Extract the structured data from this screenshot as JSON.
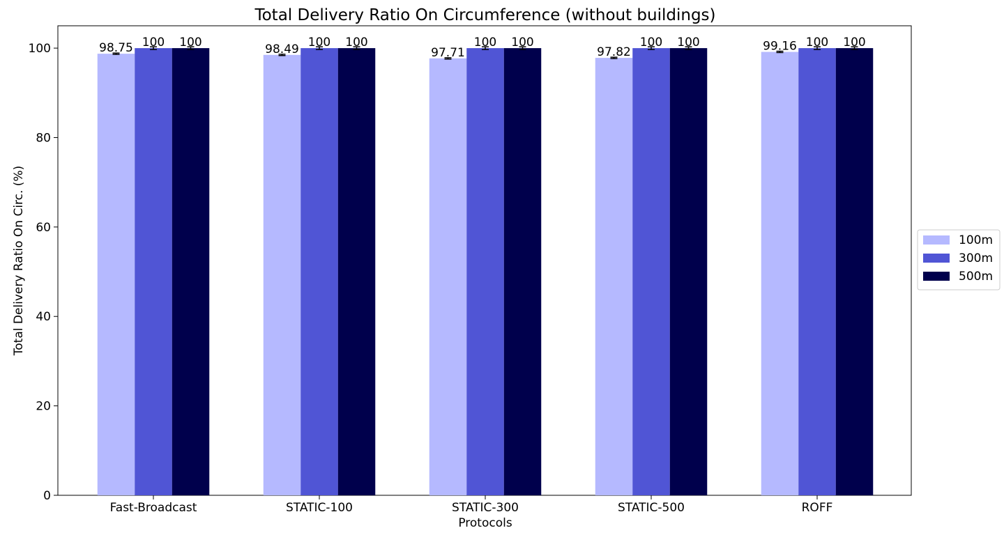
{
  "chart_data": {
    "type": "bar",
    "title": "Total Delivery Ratio On Circumference (without buildings)",
    "xlabel": "Protocols",
    "ylabel": "Total Delivery Ratio On Circ. (%)",
    "ylim": [
      0,
      105
    ],
    "yticks": [
      0,
      20,
      40,
      60,
      80,
      100
    ],
    "categories": [
      "Fast-Broadcast",
      "STATIC-100",
      "STATIC-300",
      "STATIC-500",
      "ROFF"
    ],
    "series": [
      {
        "name": "100m",
        "color": "#b5b9ff",
        "values": [
          98.75,
          98.49,
          97.71,
          97.82,
          99.16
        ],
        "labels": [
          "98.75",
          "98.49",
          "97.71",
          "97.82",
          "99.16"
        ],
        "errors": [
          0.15,
          0.15,
          0.15,
          0.15,
          0.15
        ]
      },
      {
        "name": "300m",
        "color": "#5055d5",
        "values": [
          100,
          100,
          100,
          100,
          100
        ],
        "labels": [
          "100",
          "100",
          "100",
          "100",
          "100"
        ],
        "errors": [
          0.3,
          0.3,
          0.3,
          0.3,
          0.3
        ]
      },
      {
        "name": "500m",
        "color": "#00004c",
        "values": [
          100,
          100,
          100,
          100,
          100
        ],
        "labels": [
          "100",
          "100",
          "100",
          "100",
          "100"
        ],
        "errors": [
          0.3,
          0.3,
          0.3,
          0.3,
          0.3
        ]
      }
    ],
    "grid": false,
    "legend_position": "right"
  }
}
